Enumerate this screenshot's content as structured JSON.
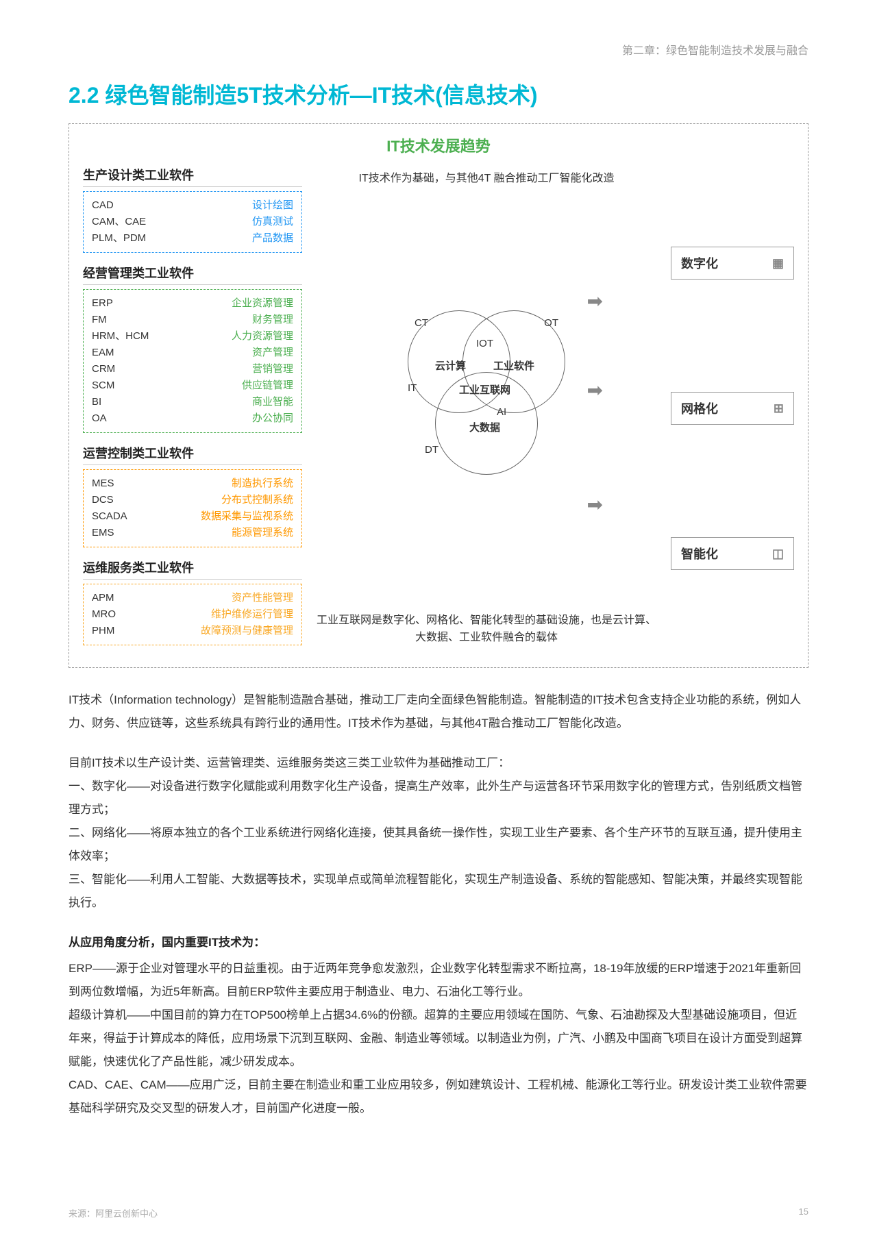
{
  "chapter": "第二章：绿色智能制造技术发展与融合",
  "section_title": "2.2 绿色智能制造5T技术分析—IT技术(信息技术)",
  "trend_title": "IT技术发展趋势",
  "colors": {
    "title": "#00b8d4",
    "trend": "#4caf50",
    "blue": "#2196f3",
    "green": "#4caf50",
    "orange": "#ff9800",
    "yellow": "#f9a825",
    "text": "#333333",
    "muted": "#999999"
  },
  "software_groups": [
    {
      "title": "生产设计类工业软件",
      "color_class": "box-blue",
      "rows": [
        {
          "l": "CAD",
          "r": "设计绘图"
        },
        {
          "l": "CAM、CAE",
          "r": "仿真测试"
        },
        {
          "l": "PLM、PDM",
          "r": "产品数据"
        }
      ]
    },
    {
      "title": "经营管理类工业软件",
      "color_class": "box-green",
      "rows": [
        {
          "l": "ERP",
          "r": "企业资源管理"
        },
        {
          "l": "FM",
          "r": "财务管理"
        },
        {
          "l": "HRM、HCM",
          "r": "人力资源管理"
        },
        {
          "l": "EAM",
          "r": "资产管理"
        },
        {
          "l": "CRM",
          "r": "营销管理"
        },
        {
          "l": "SCM",
          "r": "供应链管理"
        },
        {
          "l": "BI",
          "r": "商业智能"
        },
        {
          "l": "OA",
          "r": "办公协同"
        }
      ]
    },
    {
      "title": "运营控制类工业软件",
      "color_class": "box-orange",
      "rows": [
        {
          "l": "MES",
          "r": "制造执行系统"
        },
        {
          "l": "DCS",
          "r": "分布式控制系统"
        },
        {
          "l": "SCADA",
          "r": "数据采集与监视系统"
        },
        {
          "l": "EMS",
          "r": "能源管理系统"
        }
      ]
    },
    {
      "title": "运维服务类工业软件",
      "color_class": "box-yellow",
      "rows": [
        {
          "l": "APM",
          "r": "资产性能管理"
        },
        {
          "l": "MRO",
          "r": "维护维修运行管理"
        },
        {
          "l": "PHM",
          "r": "故障预测与健康管理"
        }
      ]
    }
  ],
  "center": {
    "top_text": "IT技术作为基础，与其他4T\n融合推动工厂智能化改造",
    "bottom_text": "工业互联网是数字化、网格化、智能化转型的基础设施，也是云计算、大数据、工业软件融合的载体",
    "venn": {
      "CT": "CT",
      "OT": "OT",
      "IT": "IT",
      "DT": "DT",
      "IOT": "IOT",
      "cloud": "云计算",
      "industrial_sw": "工业软件",
      "industrial_internet": "工业互联网",
      "AI": "AI",
      "bigdata": "大数据"
    }
  },
  "right_tags": [
    {
      "label": "数字化",
      "icon": "▦"
    },
    {
      "label": "网格化",
      "icon": "⊞"
    },
    {
      "label": "智能化",
      "icon": "◫"
    }
  ],
  "paragraphs": {
    "p1": "IT技术（Information technology）是智能制造融合基础，推动工厂走向全面绿色智能制造。智能制造的IT技术包含支持企业功能的系统，例如人力、财务、供应链等，这些系统具有跨行业的通用性。IT技术作为基础，与其他4T融合推动工厂智能化改造。",
    "p2_lead": "目前IT技术以生产设计类、运营管理类、运维服务类这三类工业软件为基础推动工厂：",
    "p2_1": "一、数字化——对设备进行数字化赋能或利用数字化生产设备，提高生产效率，此外生产与运营各环节采用数字化的管理方式，告别纸质文档管理方式；",
    "p2_2": "二、网络化——将原本独立的各个工业系统进行网络化连接，使其具备统一操作性，实现工业生产要素、各个生产环节的互联互通，提升使用主体效率；",
    "p2_3": "三、智能化——利用人工智能、大数据等技术，实现单点或简单流程智能化，实现生产制造设备、系统的智能感知、智能决策，并最终实现智能执行。",
    "p3_head": "从应用角度分析，国内重要IT技术为：",
    "p3_1": "ERP——源于企业对管理水平的日益重视。由于近两年竞争愈发激烈，企业数字化转型需求不断拉高，18-19年放缓的ERP增速于2021年重新回到两位数增幅，为近5年新高。目前ERP软件主要应用于制造业、电力、石油化工等行业。",
    "p3_2": "超级计算机——中国目前的算力在TOP500榜单上占据34.6%的份额。超算的主要应用领域在国防、气象、石油勘探及大型基础设施项目，但近年来，得益于计算成本的降低，应用场景下沉到互联网、金融、制造业等领域。以制造业为例，广汽、小鹏及中国商飞项目在设计方面受到超算赋能，快速优化了产品性能，减少研发成本。",
    "p3_3": "CAD、CAE、CAM——应用广泛，目前主要在制造业和重工业应用较多，例如建筑设计、工程机械、能源化工等行业。研发设计类工业软件需要基础科学研究及交叉型的研发人才，目前国产化进度一般。"
  },
  "footer": {
    "source": "来源：阿里云创新中心",
    "page": "15"
  }
}
